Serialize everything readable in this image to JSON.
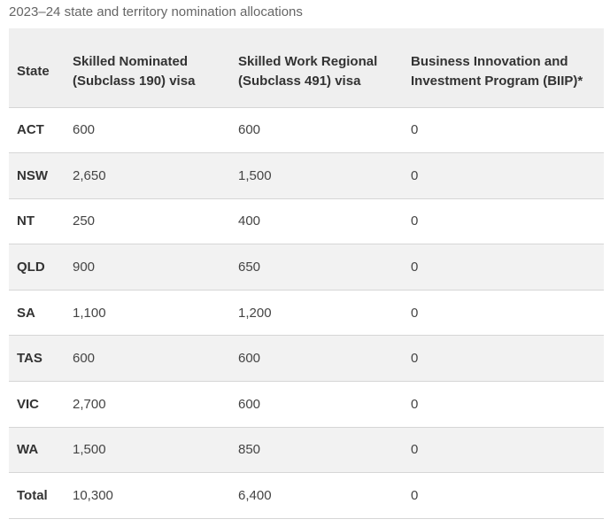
{
  "caption": "2023–24 state and territory nomination allocations",
  "table": {
    "headers": {
      "state": "State",
      "subclass190": "Skilled Nominated (Subclass 190) visa",
      "subclass491": "Skilled Work Regional (Subclass 491) visa",
      "biip": "Business Innovation and Investment Program (BIIP)*"
    },
    "rows": [
      {
        "state": "ACT",
        "s190": "600",
        "s491": "600",
        "biip": "0"
      },
      {
        "state": "NSW",
        "s190": "2,650",
        "s491": "1,500",
        "biip": "0"
      },
      {
        "state": "NT",
        "s190": "250",
        "s491": "400",
        "biip": "0"
      },
      {
        "state": "QLD",
        "s190": "900",
        "s491": "650",
        "biip": "0"
      },
      {
        "state": "SA",
        "s190": "1,100",
        "s491": "1,200",
        "biip": "0"
      },
      {
        "state": "TAS",
        "s190": "600",
        "s491": "600",
        "biip": "0"
      },
      {
        "state": "VIC",
        "s190": "2,700",
        "s491": "600",
        "biip": "0"
      },
      {
        "state": "WA",
        "s190": "1,500",
        "s491": "850",
        "biip": "0"
      },
      {
        "state": "Total",
        "s190": "10,300",
        "s491": "6,400",
        "biip": "0"
      }
    ]
  }
}
